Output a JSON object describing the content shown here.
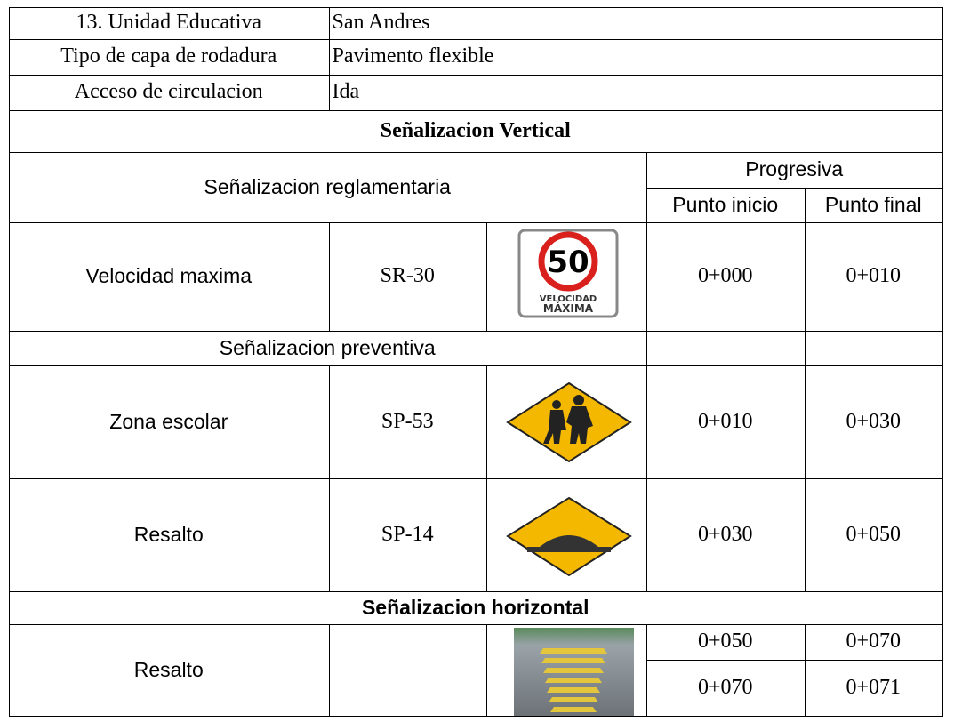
{
  "info": [
    {
      "label": "13. Unidad Educativa",
      "value": "San Andres"
    },
    {
      "label": "Tipo de capa de rodadura",
      "value": "Pavimento flexible"
    },
    {
      "label": "Acceso de circulacion",
      "value": "Ida"
    }
  ],
  "vertical": {
    "title": "Señalizacion Vertical",
    "regulatory_header": "Señalizacion reglamentaria",
    "progress_header": "Progresiva",
    "start_header": "Punto inicio",
    "end_header": "Punto final",
    "regulatory": [
      {
        "name": "Velocidad maxima",
        "code": "SR-30",
        "start": "0+000",
        "end": "0+010"
      }
    ],
    "preventive_header": "Señalizacion preventiva",
    "preventive": [
      {
        "name": "Zona escolar",
        "code": "SP-53",
        "start": "0+010",
        "end": "0+030"
      },
      {
        "name": "Resalto",
        "code": "SP-14",
        "start": "0+030",
        "end": "0+050"
      }
    ]
  },
  "horizontal": {
    "title": "Señalizacion horizontal",
    "rows": [
      {
        "name": "Resalto",
        "segments": [
          {
            "start": "0+050",
            "end": "0+070"
          },
          {
            "start": "0+070",
            "end": "0+071"
          }
        ]
      }
    ]
  },
  "signs": {
    "speed_number": "50",
    "speed_caption_1": "VELOCIDAD",
    "speed_caption_2": "MÁXIMA"
  }
}
